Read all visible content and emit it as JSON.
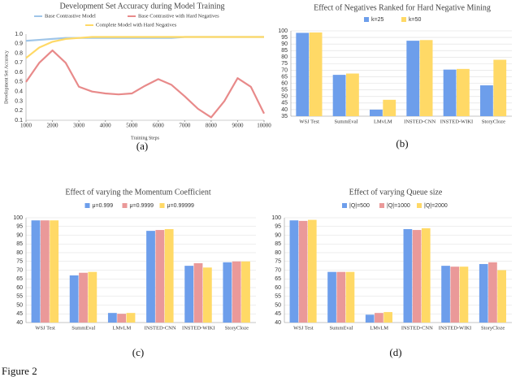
{
  "chart_data": [
    {
      "type": "line",
      "title": "Development Set Accuracy during Model Training",
      "xlabel": "Training Steps",
      "ylabel": "Development Set Accuracy",
      "caption": "(a)",
      "x": [
        1000,
        1500,
        2000,
        2500,
        3000,
        3500,
        4000,
        4500,
        5000,
        5500,
        6000,
        6500,
        7000,
        7500,
        8000,
        8500,
        9000,
        9500,
        10000
      ],
      "series": [
        {
          "name": "Base Contrastive Model",
          "color": "#9fc5e8",
          "values": [
            0.93,
            0.94,
            0.95,
            0.96,
            0.96,
            0.96,
            0.96,
            0.96,
            0.96,
            0.96,
            0.96,
            0.96,
            0.97,
            0.97,
            0.97,
            0.97,
            0.97,
            0.97,
            0.97
          ]
        },
        {
          "name": "Base Contrastive with Hard Negatives",
          "color": "#e88a8a",
          "values": [
            0.5,
            0.7,
            0.83,
            0.7,
            0.45,
            0.4,
            0.38,
            0.37,
            0.38,
            0.46,
            0.53,
            0.47,
            0.35,
            0.22,
            0.13,
            0.3,
            0.54,
            0.45,
            0.17
          ]
        },
        {
          "name": "Complete Model with Hard Negatives",
          "color": "#ffd966",
          "values": [
            0.75,
            0.86,
            0.92,
            0.95,
            0.96,
            0.97,
            0.97,
            0.97,
            0.97,
            0.97,
            0.97,
            0.97,
            0.97,
            0.97,
            0.97,
            0.97,
            0.97,
            0.97,
            0.97
          ]
        }
      ],
      "xlim": [
        1000,
        10000
      ],
      "xticks": [
        1000,
        2000,
        3000,
        4000,
        5000,
        6000,
        7000,
        8000,
        9000,
        10000
      ],
      "ylim": [
        0.1,
        1.0
      ],
      "yticks": [
        0.1,
        0.2,
        0.3,
        0.4,
        0.5,
        0.6,
        0.7,
        0.8,
        0.9,
        {
          "value": 1,
          "label": "1.0"
        }
      ],
      "grid": false
    },
    {
      "type": "bar",
      "title": "Effect of Negatives Ranked for Hard Negative Mining",
      "caption": "(b)",
      "categories": [
        "WSJ Test",
        "SummEval",
        "LMvLM",
        "INSTED-CNN",
        "INSTED-WIKI",
        "StoryCloze"
      ],
      "series": [
        {
          "name": "k=25",
          "color": "#6d9eeb",
          "values": [
            98.5,
            66.5,
            40,
            92.5,
            70.5,
            58.5
          ]
        },
        {
          "name": "k=50",
          "color": "#ffd966",
          "values": [
            98.8,
            67.5,
            47.5,
            93,
            71,
            78
          ]
        }
      ],
      "ylim": [
        35,
        100
      ],
      "yticks": [
        35,
        40,
        45,
        50,
        55,
        60,
        65,
        70,
        75,
        80,
        85,
        90,
        95,
        100
      ],
      "grid": true
    },
    {
      "type": "bar",
      "title": "Effect of varying the Momentum Coefficient",
      "caption": "(c)",
      "categories": [
        "WSJ Test",
        "SummEval",
        "LMvLM",
        "INSTED-CNN",
        "INSTED-WIKI",
        "StoryCloze"
      ],
      "series": [
        {
          "name": "μ=0.999",
          "color": "#6d9eeb",
          "values": [
            98.5,
            67,
            45.5,
            92.5,
            72.5,
            74.5
          ]
        },
        {
          "name": "μ=0.9999",
          "color": "#ea9999",
          "values": [
            98.5,
            68.5,
            45,
            93,
            74,
            75
          ]
        },
        {
          "name": "μ=0.99999",
          "color": "#ffd966",
          "values": [
            98.5,
            69,
            45.5,
            93.5,
            71.5,
            75
          ]
        }
      ],
      "ylim": [
        40,
        100
      ],
      "yticks": [
        40,
        45,
        50,
        55,
        60,
        65,
        70,
        75,
        80,
        85,
        90,
        95,
        100
      ],
      "grid": true
    },
    {
      "type": "bar",
      "title": "Effect of varying Queue size",
      "caption": "(d)",
      "categories": [
        "WSJ Test",
        "SummEval",
        "LMvLM",
        "INSTED-CNN",
        "INSTED-WIKI",
        "StoryCloze"
      ],
      "series": [
        {
          "name": "|Q|=500",
          "color": "#6d9eeb",
          "values": [
            98.5,
            69,
            44.5,
            93.5,
            72.5,
            73.5
          ]
        },
        {
          "name": "|Q|=1000",
          "color": "#ea9999",
          "values": [
            98.2,
            69,
            45.5,
            93,
            72,
            74.5
          ]
        },
        {
          "name": "|Q|=2000",
          "color": "#ffd966",
          "values": [
            98.8,
            69,
            46,
            94,
            72,
            70
          ]
        }
      ],
      "ylim": [
        40,
        100
      ],
      "yticks": [
        40,
        45,
        50,
        55,
        60,
        65,
        70,
        75,
        80,
        85,
        90,
        95,
        100
      ],
      "grid": true
    }
  ],
  "figure_label": "Figure 2"
}
